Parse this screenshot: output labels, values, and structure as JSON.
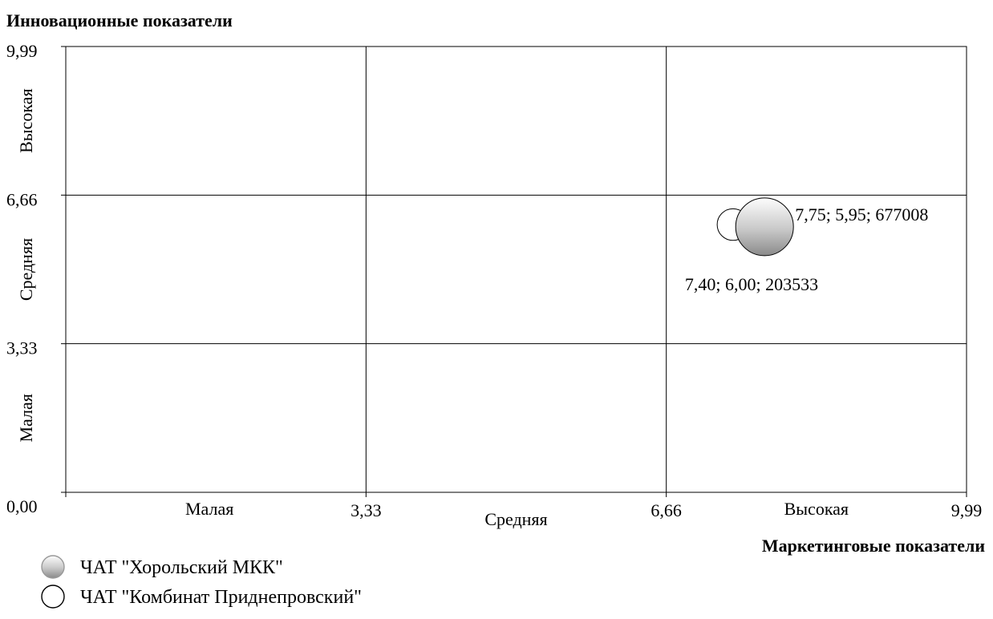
{
  "chart_data": {
    "type": "bubble",
    "ylabel": "Инновационные показатели",
    "xlabel": "Маркетинговые показатели",
    "xlim": [
      0,
      9.99
    ],
    "ylim": [
      0,
      9.99
    ],
    "x_ticks": [
      "0,00",
      "3,33",
      "6,66",
      "9,99"
    ],
    "y_ticks": [
      "0,00",
      "3,33",
      "6,66",
      "9,99"
    ],
    "x_tick_values": [
      0,
      3.33,
      6.66,
      9.99
    ],
    "y_tick_values": [
      0,
      3.33,
      6.66,
      9.99
    ],
    "x_zones": [
      "Малая",
      "Средняя",
      "Высокая"
    ],
    "y_zones": [
      "Малая",
      "Средняя",
      "Высокая"
    ],
    "grid": true,
    "legend_position": "bottom-left",
    "series": [
      {
        "name": "ЧАТ \"Хорольский МКК\"",
        "x": 7.75,
        "y": 5.95,
        "size": 677008,
        "label": "7,75; 5,95; 677008",
        "fill": "gradient-gray"
      },
      {
        "name": "ЧАТ \"Комбинат Приднепровский\"",
        "x": 7.4,
        "y": 6.0,
        "size": 203533,
        "label": "7,40; 6,00; 203533",
        "fill": "white"
      }
    ]
  },
  "colors": {
    "axis": "#000000",
    "grid": "#000000",
    "bubble_light": "#ffffff",
    "bubble_dark": "#8a8a8a"
  }
}
